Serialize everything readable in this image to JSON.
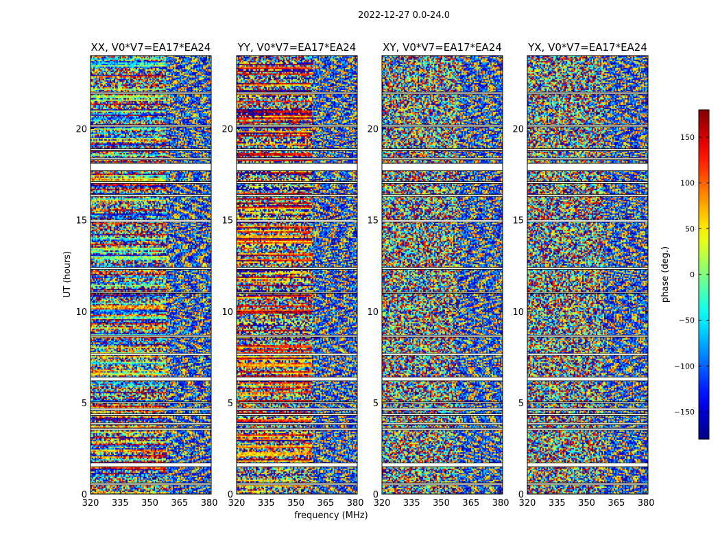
{
  "figure": {
    "suptitle": "2022-12-27 0.0-24.0"
  },
  "chart_data": {
    "type": "heatmap",
    "xlabel": "frequency (MHz)",
    "ylabel": "UT (hours)",
    "xlim": [
      320,
      381
    ],
    "ylim": [
      0,
      24
    ],
    "xticks": [
      "320",
      "335",
      "350",
      "365",
      "380"
    ],
    "yticks": [
      "0",
      "5",
      "10",
      "15",
      "20"
    ],
    "colorbar": {
      "label": "phase (deg.)",
      "range": [
        -180,
        180
      ],
      "ticks": [
        "150",
        "100",
        "50",
        "0",
        "−50",
        "−100",
        "−150"
      ],
      "colormap": "jet"
    },
    "panels": [
      {
        "title": "XX, V0*V7=EA17*EA24",
        "pol": "XX",
        "coherent": true
      },
      {
        "title": "YY, V0*V7=EA17*EA24",
        "pol": "YY",
        "coherent": true
      },
      {
        "title": "XY, V0*V7=EA17*EA24",
        "pol": "XY",
        "coherent": false
      },
      {
        "title": "YX, V0*V7=EA17*EA24",
        "pol": "YX",
        "coherent": false
      }
    ],
    "flagged_time_bands_hours": [
      [
        0.5,
        0.6
      ],
      [
        1.5,
        1.7
      ],
      [
        3.5,
        3.6
      ],
      [
        3.8,
        3.9
      ],
      [
        4.3,
        4.4
      ],
      [
        4.6,
        4.7
      ],
      [
        5.0,
        5.05
      ],
      [
        6.2,
        6.4
      ],
      [
        7.6,
        7.7
      ],
      [
        8.6,
        8.7
      ],
      [
        11.0,
        11.05
      ],
      [
        12.3,
        12.4
      ],
      [
        14.9,
        15.0
      ],
      [
        16.3,
        16.4
      ],
      [
        17.0,
        17.1
      ],
      [
        17.7,
        18.1
      ],
      [
        18.3,
        18.4
      ],
      [
        18.8,
        18.9
      ],
      [
        20.1,
        20.2
      ],
      [
        21.9,
        22.0
      ]
    ]
  }
}
